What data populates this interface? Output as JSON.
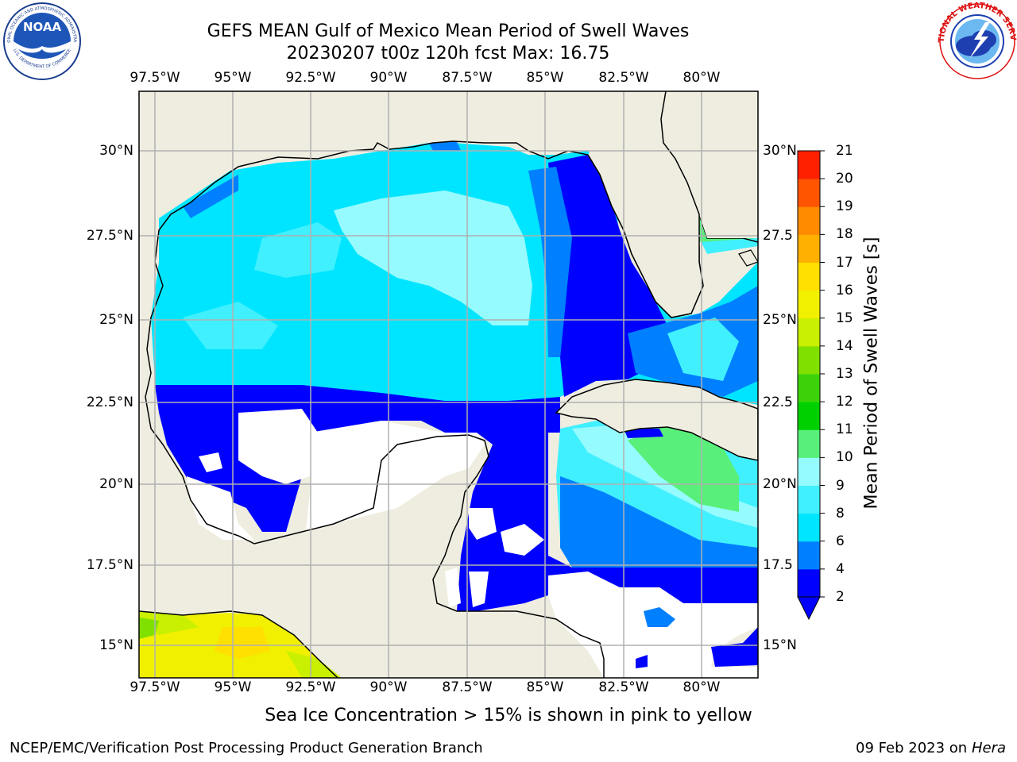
{
  "header": {
    "title_line1": "GEFS MEAN Gulf of Mexico Mean Period of Swell Waves",
    "title_line2": "20230207 t00z 120h fcst   Max: 16.75"
  },
  "logos": {
    "left": {
      "name": "NOAA",
      "ring_text": "NATIONAL OCEANIC AND ATMOSPHERIC ADMINISTRATION",
      "bottom_text": "U.S. DEPARTMENT OF COMMERCE"
    },
    "right": {
      "name": "NATIONAL WEATHER SERVICE"
    }
  },
  "map": {
    "lon_ticks": [
      "97.5°W",
      "95°W",
      "92.5°W",
      "90°W",
      "87.5°W",
      "85°W",
      "82.5°W",
      "80°W"
    ],
    "lat_ticks_left": [
      "30°N",
      "27.5°N",
      "25°N",
      "22.5°N",
      "20°N",
      "17.5°N",
      "15°N"
    ],
    "lat_ticks_right": [
      "30°N",
      "27.5",
      "25°N",
      "22.5",
      "20°N",
      "17.5",
      "15°N"
    ],
    "extent": {
      "lon_min": -98,
      "lon_max": -79,
      "lat_min": 14,
      "lat_max": 31.8
    },
    "grid": true,
    "colors": {
      "land": "#eeede0",
      "no_data": "#ffffff",
      "grid": "#b0b0b0",
      "coast": "#000000"
    }
  },
  "colorbar": {
    "label": "Mean Period of Swell Waves [s]",
    "ticks": [
      "21",
      "20",
      "19",
      "18",
      "17",
      "16",
      "15",
      "14",
      "13",
      "12",
      "11",
      "10",
      "9",
      "8",
      "6",
      "4",
      "2"
    ],
    "levels": [
      2,
      4,
      6,
      8,
      9,
      10,
      11,
      12,
      13,
      14,
      15,
      16,
      17,
      18,
      19,
      20,
      21
    ],
    "colors": [
      "#0000ff",
      "#0080ff",
      "#00e5ff",
      "#40f0ff",
      "#96fbff",
      "#58f07a",
      "#00d000",
      "#3cd20a",
      "#80e000",
      "#c8f000",
      "#f0f000",
      "#ffe000",
      "#ffb000",
      "#ff8c00",
      "#ff5500",
      "#ff2000",
      "#ff0000"
    ],
    "extend": "min"
  },
  "notes": {
    "sea_ice": "Sea Ice Concentration > 15% is shown in pink to yellow"
  },
  "footer": {
    "left": "NCEP/EMC/Verification Post Processing Product Generation Branch",
    "right_date": "09 Feb 2023 on",
    "right_host": "Hera"
  }
}
